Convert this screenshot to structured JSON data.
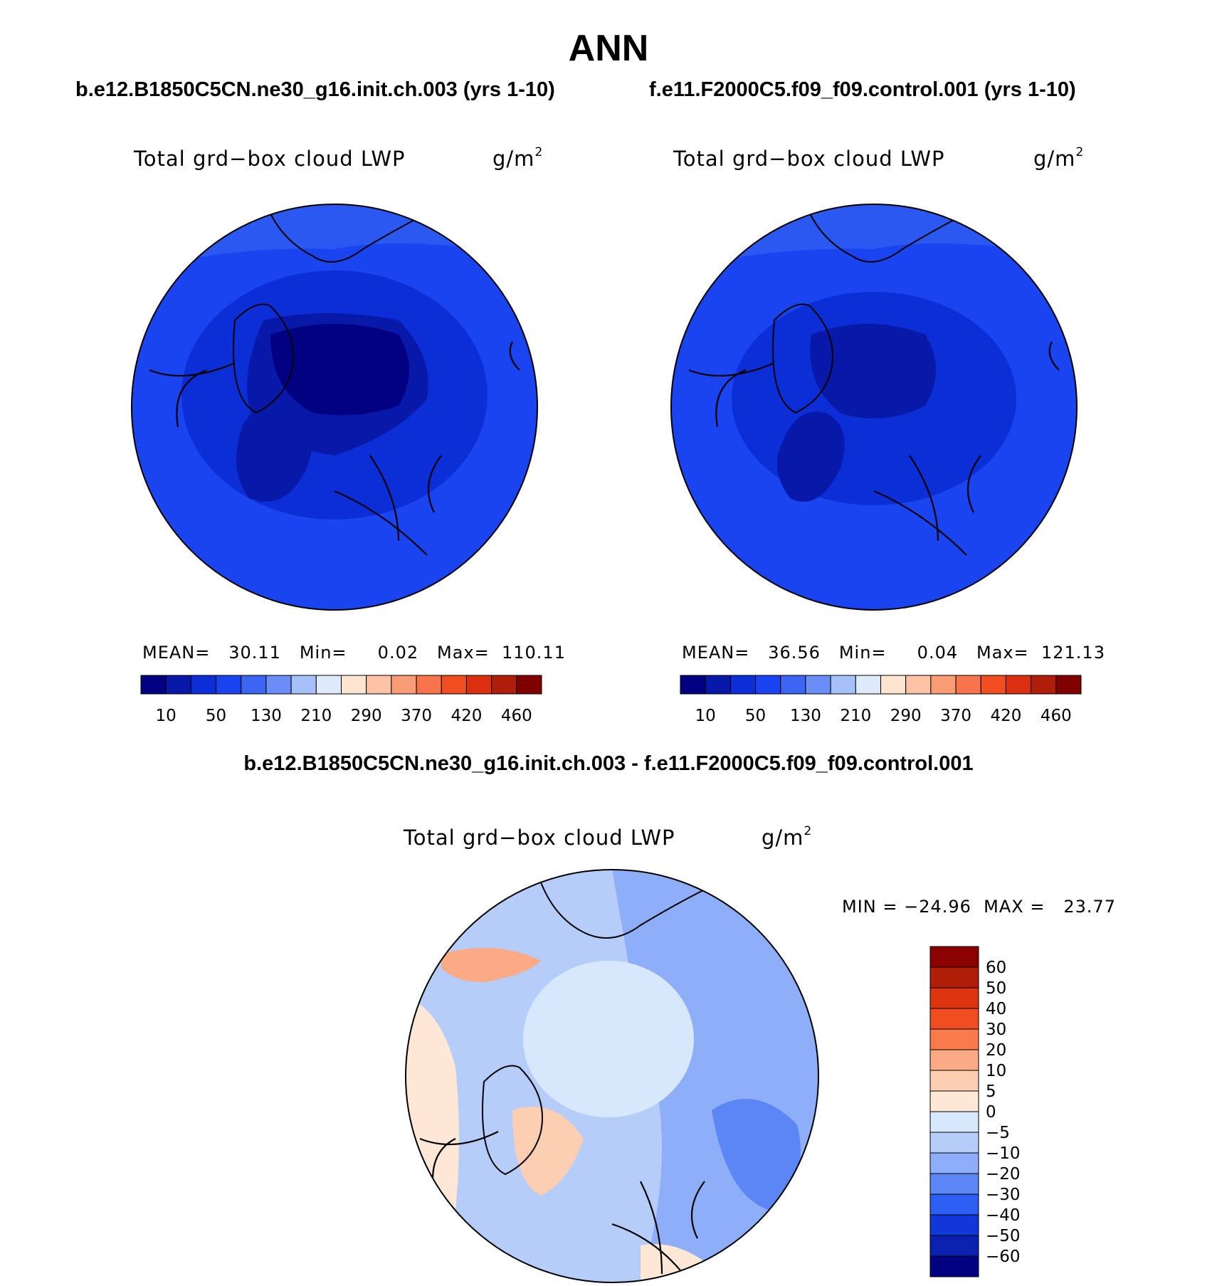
{
  "header": {
    "title": "ANN",
    "case_left": "b.e12.B1850C5CN.ne30_g16.init.ch.003 (yrs 1-10)",
    "case_right": "f.e11.F2000C5.f09_f09.control.001 (yrs 1-10)",
    "diff_title": "b.e12.B1850C5CN.ne30_g16.init.ch.003 - f.e11.F2000C5.f09_f09.control.001"
  },
  "panels": {
    "left": {
      "variable": "Total grd−box cloud LWP",
      "units": "g/m",
      "units_exp": "2",
      "stats": "MEAN=   30.11   Min=     0.02   Max=  110.11",
      "mean": 30.11,
      "min": 0.02,
      "max": 110.11
    },
    "right": {
      "variable": "Total grd−box cloud LWP",
      "units": "g/m",
      "units_exp": "2",
      "stats": "MEAN=   36.56   Min=     0.04   Max=  121.13",
      "mean": 36.56,
      "min": 0.04,
      "max": 121.13
    },
    "diff": {
      "variable": "Total grd−box cloud LWP",
      "units": "g/m",
      "units_exp": "2",
      "stats": "MIN = −24.96  MAX =   23.77",
      "min": -24.96,
      "max": 23.77
    }
  },
  "colorbar_main": {
    "labels": [
      "10",
      "50",
      "130",
      "210",
      "290",
      "370",
      "420",
      "460"
    ],
    "colors": [
      "#000080",
      "#0818a8",
      "#0c2ed6",
      "#1a44f0",
      "#3a66f2",
      "#6a8ef6",
      "#a6c0fa",
      "#dceafc",
      "#fde5d0",
      "#fcc4a4",
      "#fa9c76",
      "#f8744a",
      "#f04e20",
      "#d83010",
      "#b01e0a",
      "#800000"
    ]
  },
  "colorbar_diff": {
    "labels": [
      "60",
      "50",
      "40",
      "30",
      "20",
      "10",
      "5",
      "0",
      "−5",
      "−10",
      "−20",
      "−30",
      "−40",
      "−50",
      "−60"
    ],
    "colors": [
      "#8b0000",
      "#b01e0a",
      "#dd3510",
      "#f04e20",
      "#fa7a4c",
      "#fcaa84",
      "#fdcfb2",
      "#fde8d6",
      "#d8e8fc",
      "#b6cdf9",
      "#8eaef7",
      "#5c86f4",
      "#2c5ef2",
      "#1038d8",
      "#0a20b0",
      "#000080"
    ]
  }
}
